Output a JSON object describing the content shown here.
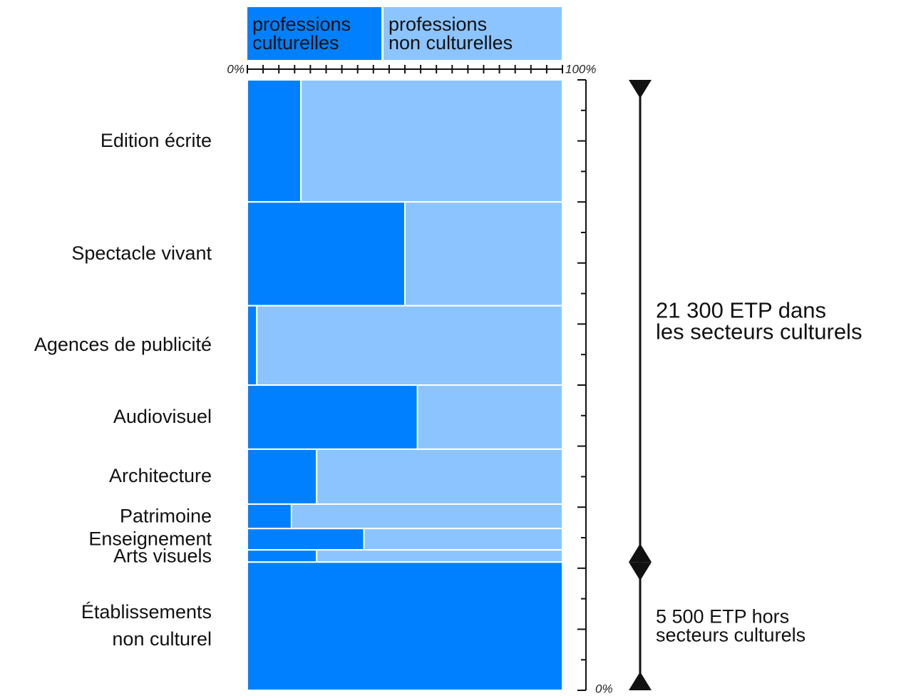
{
  "chart_data": {
    "type": "mosaic",
    "legend": [
      "professions\nculturelles",
      "professions\nnon culturelles"
    ],
    "colors": [
      "#0080ff",
      "#8cc4ff"
    ],
    "categories": [
      "Edition écrite",
      "Spectacle vivant",
      "Agences de publicité",
      "Audiovisuel",
      "Architecture",
      "Patrimoine",
      "Enseignement",
      "Arts visuels",
      "Établissements\nnon culturel"
    ],
    "heights": [
      20,
      17,
      13,
      10.5,
      9,
      4,
      3.5,
      2,
      21
    ],
    "values": [
      17,
      50,
      3,
      54,
      22,
      14,
      37,
      22,
      100
    ],
    "xlim": [
      0,
      100
    ],
    "xticks": [
      {
        "value": 0,
        "label": "0%"
      },
      5,
      10,
      15,
      20,
      25,
      30,
      35,
      40,
      45,
      50,
      55,
      60,
      65,
      70,
      75,
      80,
      85,
      90,
      95,
      {
        "value": 100,
        "label": "100%"
      }
    ],
    "ylim": [
      0,
      100
    ],
    "yticks": [
      {
        "value": 0,
        "label": "0%"
      },
      5,
      10,
      15,
      20,
      25,
      30,
      35,
      40,
      45,
      50,
      55,
      60,
      65,
      70,
      75,
      80,
      85,
      90,
      95,
      100
    ],
    "annotations": [
      {
        "text": "21 300 ETP dans\nles secteurs culturels",
        "from": 0,
        "to": 8
      },
      {
        "text": "5 500 ETP hors\nsecteurs culturels",
        "from": 8,
        "to": 9
      }
    ]
  }
}
